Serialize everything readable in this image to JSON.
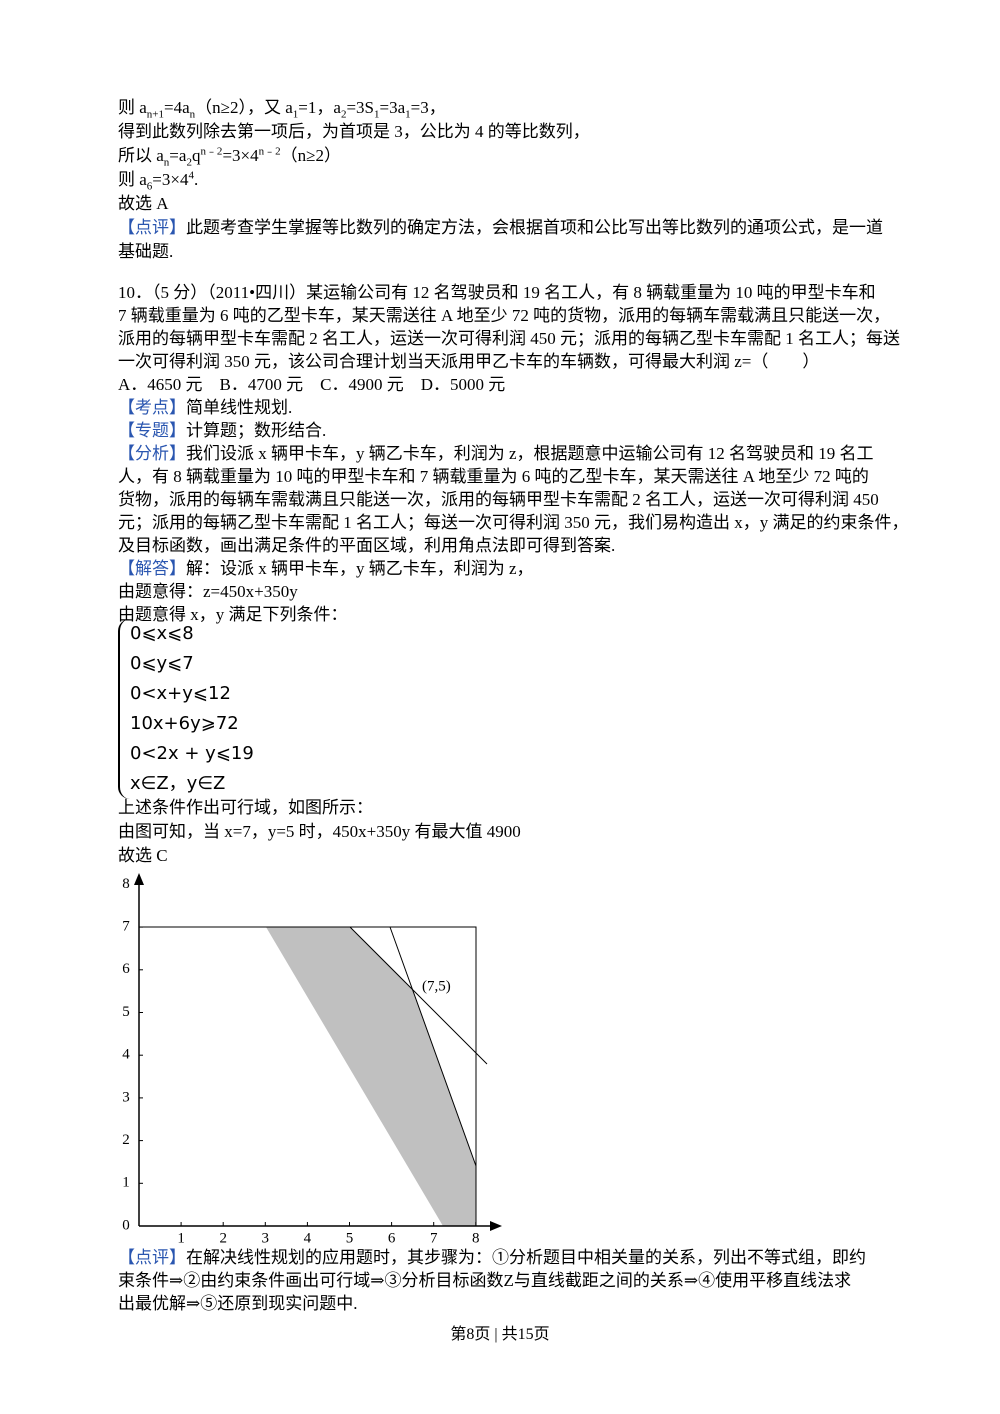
{
  "blocks": [
    {
      "lines": [
        [
          "则 a",
          {
            "sub": "n+1"
          },
          "=4a",
          {
            "sub": "n"
          },
          "（n≥2），又 a",
          {
            "sub": "1"
          },
          "=1，a",
          {
            "sub": "2"
          },
          "=3S",
          {
            "sub": "1"
          },
          "=3a",
          {
            "sub": "1"
          },
          "=3，"
        ],
        [
          "得到此数列除去第一项后，为首项是 3，公比为 4 的等比数列，"
        ],
        [
          "所以 a",
          {
            "sub": "n"
          },
          "=a",
          {
            "sub": "2"
          },
          "q",
          {
            "sup": "n﹣2"
          },
          "=3×4",
          {
            "sup": "n﹣2"
          },
          "（n≥2）"
        ],
        [
          "则 a",
          {
            "sub": "6"
          },
          "=3×4",
          {
            "sup": "4"
          },
          "."
        ],
        [
          "故选 A"
        ],
        [
          {
            "hl": "【点评】"
          },
          "此题考查学生掌握等比数列的确定方法，会根据首项和公比写出等比数列的通项公式，是一道"
        ],
        [
          "基础题."
        ]
      ]
    },
    {
      "lines": [
        [
          "10．（5 分）（2011•四川）某运输公司有 12 名驾驶员和 19 名工人，有 8 辆载重量为 10 吨的甲型卡车和"
        ],
        [
          "7 辆载重量为 6 吨的乙型卡车，某天需送往 A 地至少 72 吨的货物，派用的每辆车需载满且只能送一次，"
        ],
        [
          "派用的每辆甲型卡车需配 2 名工人，运送一次可得利润 450 元；派用的每辆乙型卡车需配 1 名工人；每送"
        ],
        [
          "一次可得利润 350 元，该公司合理计划当天派用甲乙卡车的车辆数，可得最大利润 z=（　　）"
        ],
        [
          "A．4650 元　B．4700 元　C．4900 元　D．5000 元"
        ],
        [
          {
            "hl": "【考点】"
          },
          "简单线性规划."
        ],
        [
          {
            "hl": "【专题】"
          },
          "计算题；数形结合."
        ],
        [
          {
            "hl": "【分析】"
          },
          "我们设派 x 辆甲卡车，y 辆乙卡车，利润为 z，根据题意中运输公司有 12 名驾驶员和 19 名工"
        ],
        [
          "人，有 8 辆载重量为 10 吨的甲型卡车和 7 辆载重量为 6 吨的乙型卡车，某天需送往 A 地至少 72 吨的"
        ],
        [
          "货物，派用的每辆车需载满且只能送一次，派用的每辆甲型卡车需配 2 名工人，运送一次可得利润 450"
        ],
        [
          "元；派用的每辆乙型卡车需配 1 名工人；每送一次可得利润 350 元，我们易构造出 x，y 满足的约束条件，"
        ],
        [
          "及目标函数，画出满足条件的平面区域，利用角点法即可得到答案."
        ],
        [
          {
            "hl": "【解答】"
          },
          "解：设派 x 辆甲卡车，y 辆乙卡车，利润为 z，"
        ],
        [
          "由题意得：z=450x+350y"
        ],
        [
          "由题意得 x，y 满足下列条件："
        ]
      ]
    },
    {
      "system": [
        "0⩽x⩽8",
        "0⩽y⩽7",
        "0<x+y⩽12",
        "10x+6y⩾72",
        "0<2x + y⩽19",
        "x∈Z，y∈Z"
      ]
    },
    {
      "lines": [
        [
          "上述条件作出可行域，如图所示："
        ],
        [
          "由图可知，当 x=7，y=5 时，450x+350y 有最大值 4900"
        ],
        [
          "故选 C"
        ]
      ]
    },
    {
      "figure": {
        "xticks": [
          1,
          2,
          3,
          4,
          5,
          6,
          7,
          8
        ],
        "yticks": [
          0,
          1,
          2,
          3,
          4,
          5,
          6,
          7,
          8
        ],
        "point_label": "(7,5)"
      }
    },
    {
      "lines": [
        [
          {
            "hl": "【点评】"
          },
          "在解决线性规划的应用题时，其步骤为：①分析题目中相关量的关系，列出不等式组，即约"
        ],
        [
          "束条件⇒②由约束条件画出可行域⇒③分析目标函数Z与直线截距之间的关系⇒④使用平移直线法求"
        ],
        [
          "出最优解⇒⑤还原到现实问题中."
        ]
      ]
    }
  ],
  "footer": "第8页 | 共15页"
}
